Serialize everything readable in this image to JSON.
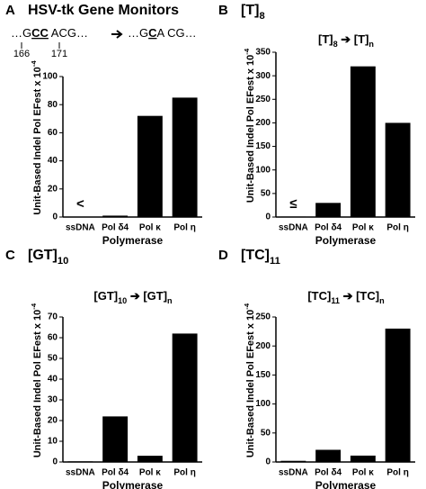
{
  "chart_data": [
    {
      "type": "bar",
      "letter": "A",
      "title": [
        {
          "text": "HSV-tk Gene Monitors"
        }
      ],
      "sequence_before": [
        {
          "text": "…G"
        },
        {
          "u": "CC"
        },
        {
          "text": " ACG…"
        }
      ],
      "sequence_after": [
        {
          "text": "…G"
        },
        {
          "u": "C"
        },
        {
          "text": "A CG…"
        }
      ],
      "positions": [
        166,
        171
      ],
      "categories": [
        "ssDNA",
        "Pol δ4",
        "Pol κ",
        "Pol η"
      ],
      "values": [
        0,
        1,
        72,
        85
      ],
      "color": "#000000",
      "annotations": [
        {
          "category": "ssDNA",
          "text": "<"
        }
      ],
      "ylim": [
        0,
        100
      ],
      "yticks": [
        0,
        20,
        40,
        60,
        80,
        100
      ],
      "xlabel": "Polymerase",
      "ylabel": [
        {
          "text": "Unit-Based Indel Pol EFest x 10"
        },
        {
          "sup": "-4"
        }
      ]
    },
    {
      "type": "bar",
      "letter": "B",
      "title": [
        {
          "text": "[T]"
        },
        {
          "sub": "8"
        }
      ],
      "subtitle": [
        {
          "text": "[T]"
        },
        {
          "sub": "8"
        },
        {
          "text": " ➔ [T]"
        },
        {
          "sub": "n"
        }
      ],
      "categories": [
        "ssDNA",
        "Pol δ4",
        "Pol κ",
        "Pol η"
      ],
      "values": [
        1,
        30,
        320,
        200
      ],
      "color": "#000000",
      "annotations": [
        {
          "category": "ssDNA",
          "text": "≤"
        }
      ],
      "ylim": [
        0,
        350
      ],
      "yticks": [
        0,
        50,
        100,
        150,
        200,
        250,
        300,
        350
      ],
      "xlabel": "Polymerase",
      "ylabel": [
        {
          "text": "Unit-Based Indel Pol EFest x 10"
        },
        {
          "sup": "-4"
        }
      ]
    },
    {
      "type": "bar",
      "letter": "C",
      "title": [
        {
          "text": "[GT]"
        },
        {
          "sub": "10"
        }
      ],
      "subtitle": [
        {
          "text": "[GT]"
        },
        {
          "sub": "10"
        },
        {
          "text": " ➔ [GT]"
        },
        {
          "sub": "n"
        }
      ],
      "categories": [
        "ssDNA",
        "Pol δ4",
        "Pol κ",
        "Pol η"
      ],
      "values": [
        0.3,
        22,
        3,
        62
      ],
      "color": "#000000",
      "ylim": [
        0,
        70
      ],
      "yticks": [
        0,
        10,
        20,
        30,
        40,
        50,
        60,
        70
      ],
      "xlabel": "Polymerase",
      "ylabel": [
        {
          "text": "Unit-Based Indel Pol EFest x 10"
        },
        {
          "sup": "-4"
        }
      ]
    },
    {
      "type": "bar",
      "letter": "D",
      "title": [
        {
          "text": "[TC]"
        },
        {
          "sub": "11"
        }
      ],
      "subtitle": [
        {
          "text": "[TC]"
        },
        {
          "sub": "11"
        },
        {
          "text": " ➔ [TC]"
        },
        {
          "sub": "n"
        }
      ],
      "categories": [
        "ssDNA",
        "Pol δ4",
        "Pol κ",
        "Pol η"
      ],
      "values": [
        2,
        21,
        11,
        230
      ],
      "color": "#000000",
      "ylim": [
        0,
        250
      ],
      "yticks": [
        0,
        50,
        100,
        150,
        200,
        250
      ],
      "xlabel": "Polymerase",
      "ylabel": [
        {
          "text": "Unit-Based Indel Pol EFest x 10"
        },
        {
          "sup": "-4"
        }
      ]
    }
  ]
}
